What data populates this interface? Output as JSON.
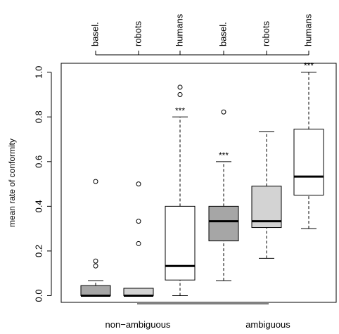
{
  "chart_data": {
    "type": "box",
    "ylabel": "mean rate of conformity",
    "xlabel": "",
    "title": "",
    "ylim": [
      -0.03,
      1.04
    ],
    "y_ticks": [
      0.0,
      0.2,
      0.4,
      0.6,
      0.8,
      1.0
    ],
    "y_tick_labels": [
      "0.0",
      "0.2",
      "0.4",
      "0.6",
      "0.8",
      "1.0"
    ],
    "groups": [
      {
        "label": "non−ambiguous",
        "indices": [
          0,
          1,
          2
        ]
      },
      {
        "label": "ambiguous",
        "indices": [
          3,
          4,
          5
        ]
      }
    ],
    "boxes": [
      {
        "label": "basel.",
        "group": "non−ambiguous",
        "fill": "#a6a6a6",
        "whisker_low": 0.0,
        "q1": 0.0,
        "median": 0.0,
        "q3": 0.045,
        "whisker_high": 0.067,
        "outliers": [
          0.133,
          0.155,
          0.511
        ],
        "significance": ""
      },
      {
        "label": "robots",
        "group": "non−ambiguous",
        "fill": "#d3d3d3",
        "whisker_low": 0.0,
        "q1": 0.0,
        "median": 0.0,
        "q3": 0.033,
        "whisker_high": 0.033,
        "outliers": [
          0.233,
          0.333,
          0.5
        ],
        "significance": ""
      },
      {
        "label": "humans",
        "group": "non−ambiguous",
        "fill": "#ffffff",
        "whisker_low": 0.0,
        "q1": 0.07,
        "median": 0.133,
        "q3": 0.4,
        "whisker_high": 0.8,
        "outliers": [
          0.9,
          0.933
        ],
        "significance": "***"
      },
      {
        "label": "basel.",
        "group": "ambiguous",
        "fill": "#a6a6a6",
        "whisker_low": 0.067,
        "q1": 0.245,
        "median": 0.333,
        "q3": 0.4,
        "whisker_high": 0.6,
        "outliers": [
          0.822
        ],
        "significance": "***"
      },
      {
        "label": "robots",
        "group": "ambiguous",
        "fill": "#d3d3d3",
        "whisker_low": 0.167,
        "q1": 0.305,
        "median": 0.333,
        "q3": 0.49,
        "whisker_high": 0.733,
        "outliers": [],
        "significance": ""
      },
      {
        "label": "humans",
        "group": "ambiguous",
        "fill": "#ffffff",
        "whisker_low": 0.3,
        "q1": 0.45,
        "median": 0.533,
        "q3": 0.745,
        "whisker_high": 1.0,
        "outliers": [],
        "significance": "***"
      }
    ],
    "grid": false,
    "legend": "none"
  }
}
